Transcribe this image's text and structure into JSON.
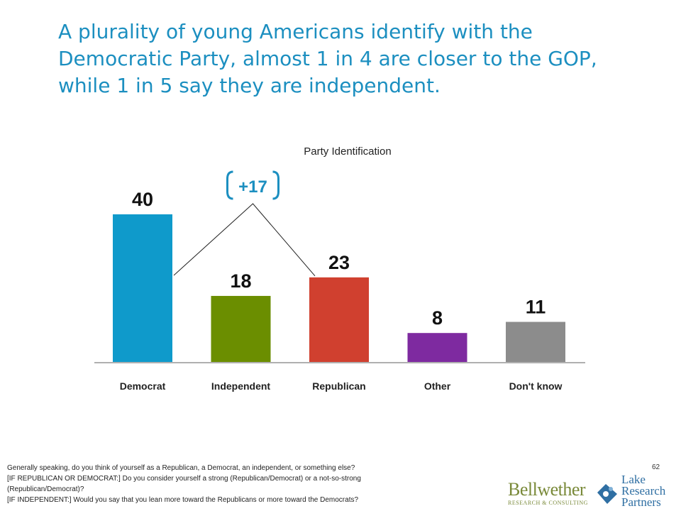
{
  "headline": "A plurality of young Americans identify with the Democratic Party, almost 1 in 4 are closer to the GOP, while 1 in 5 say they are independent.",
  "chart_data": {
    "type": "bar",
    "title": "Party Identification",
    "categories": [
      "Democrat",
      "Independent",
      "Republican",
      "Other",
      "Don't know"
    ],
    "values": [
      40,
      18,
      23,
      8,
      11
    ],
    "colors": [
      "#0f9acb",
      "#6b8e00",
      "#d0402f",
      "#7e2aa0",
      "#8c8c8c"
    ],
    "ylim": [
      0,
      40
    ],
    "grid": false,
    "annotation": {
      "label": "+17",
      "between": [
        "Democrat",
        "Republican"
      ],
      "color": "#1c8fc0"
    }
  },
  "footnote": {
    "lines": [
      "Generally speaking, do you think of yourself as a Republican, a Democrat, an independent, or something else?",
      "[IF REPUBLICAN OR DEMOCRAT:]  Do you consider yourself a strong (Republican/Democrat) or a not-so-strong",
      "(Republican/Democrat)?",
      "[IF INDEPENDENT:]   Would you say that you lean more toward the Republicans or more toward the Democrats?"
    ]
  },
  "page_number": "62",
  "logos": {
    "bellwether": {
      "name": "Bellwether",
      "sub": "RESEARCH & CONSULTING"
    },
    "lake": {
      "line1": "Lake",
      "line2": "Research",
      "line3": "Partners"
    }
  }
}
